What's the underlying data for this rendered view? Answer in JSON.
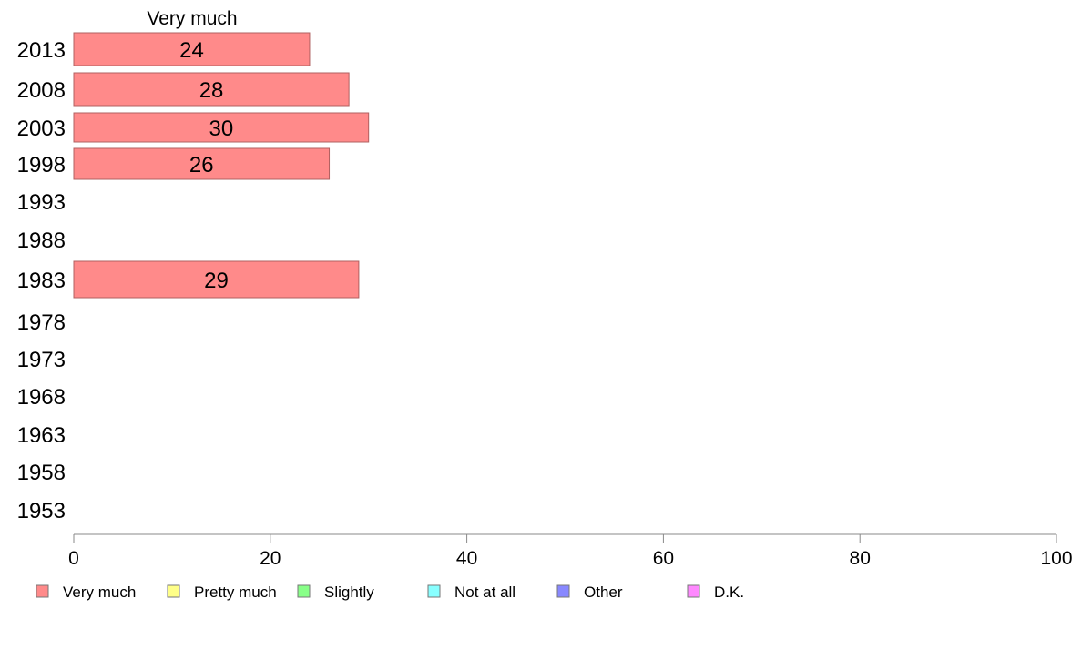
{
  "chart_data": {
    "type": "bar",
    "orientation": "horizontal",
    "stacked": true,
    "header": "Very much",
    "categories": [
      "2013",
      "2008",
      "2003",
      "1998",
      "1993",
      "1988",
      "1983",
      "1978",
      "1973",
      "1968",
      "1963",
      "1958",
      "1953"
    ],
    "series": [
      {
        "name": "Very much",
        "color": "#ff8a8a",
        "values": [
          24,
          28,
          30,
          26,
          null,
          null,
          29,
          null,
          null,
          null,
          null,
          null,
          null
        ]
      },
      {
        "name": "Pretty much",
        "color": "#ffff88",
        "values": [
          null,
          null,
          null,
          null,
          null,
          null,
          null,
          null,
          null,
          null,
          null,
          null,
          null
        ]
      },
      {
        "name": "Slightly",
        "color": "#88ff88",
        "values": [
          null,
          null,
          null,
          null,
          null,
          null,
          null,
          null,
          null,
          null,
          null,
          null,
          null
        ]
      },
      {
        "name": "Not at all",
        "color": "#88ffff",
        "values": [
          null,
          null,
          null,
          null,
          null,
          null,
          null,
          null,
          null,
          null,
          null,
          null,
          null
        ]
      },
      {
        "name": "Other",
        "color": "#8888ff",
        "values": [
          null,
          null,
          null,
          null,
          null,
          null,
          null,
          null,
          null,
          null,
          null,
          null,
          null
        ]
      },
      {
        "name": "D.K.",
        "color": "#ff88ff",
        "values": [
          null,
          null,
          null,
          null,
          null,
          null,
          null,
          null,
          null,
          null,
          null,
          null,
          null
        ]
      }
    ],
    "xlim": [
      0,
      100
    ],
    "xticks": [
      0,
      20,
      40,
      60,
      80,
      100
    ],
    "grid": false,
    "legend_position": "bottom"
  }
}
